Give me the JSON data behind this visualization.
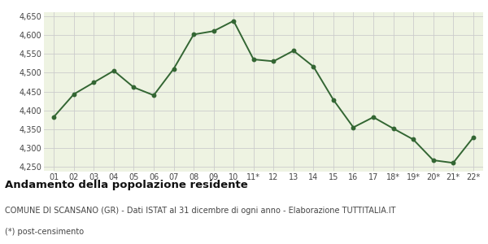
{
  "x_labels": [
    "01",
    "02",
    "03",
    "04",
    "05",
    "06",
    "07",
    "08",
    "09",
    "10",
    "11*",
    "12",
    "13",
    "14",
    "15",
    "16",
    "17",
    "18*",
    "19*",
    "20*",
    "21*",
    "22*"
  ],
  "values": [
    4383,
    4443,
    4474,
    4505,
    4461,
    4440,
    4510,
    4601,
    4610,
    4637,
    4535,
    4530,
    4558,
    4516,
    4428,
    4355,
    4382,
    4352,
    4323,
    4268,
    4261,
    4328
  ],
  "line_color": "#336633",
  "fill_color": "#eef3e2",
  "marker": "o",
  "marker_size": 3.2,
  "line_width": 1.4,
  "ylim": [
    4240,
    4660
  ],
  "yticks": [
    4250,
    4300,
    4350,
    4400,
    4450,
    4500,
    4550,
    4600,
    4650
  ],
  "title": "Andamento della popolazione residente",
  "subtitle": "COMUNE DI SCANSANO (GR) - Dati ISTAT al 31 dicembre di ogni anno - Elaborazione TUTTITALIA.IT",
  "footnote": "(*) post-censimento",
  "bg_color": "#ffffff",
  "grid_color": "#cccccc",
  "title_fontsize": 9.5,
  "subtitle_fontsize": 7.0,
  "footnote_fontsize": 7.0,
  "tick_fontsize": 7.0
}
